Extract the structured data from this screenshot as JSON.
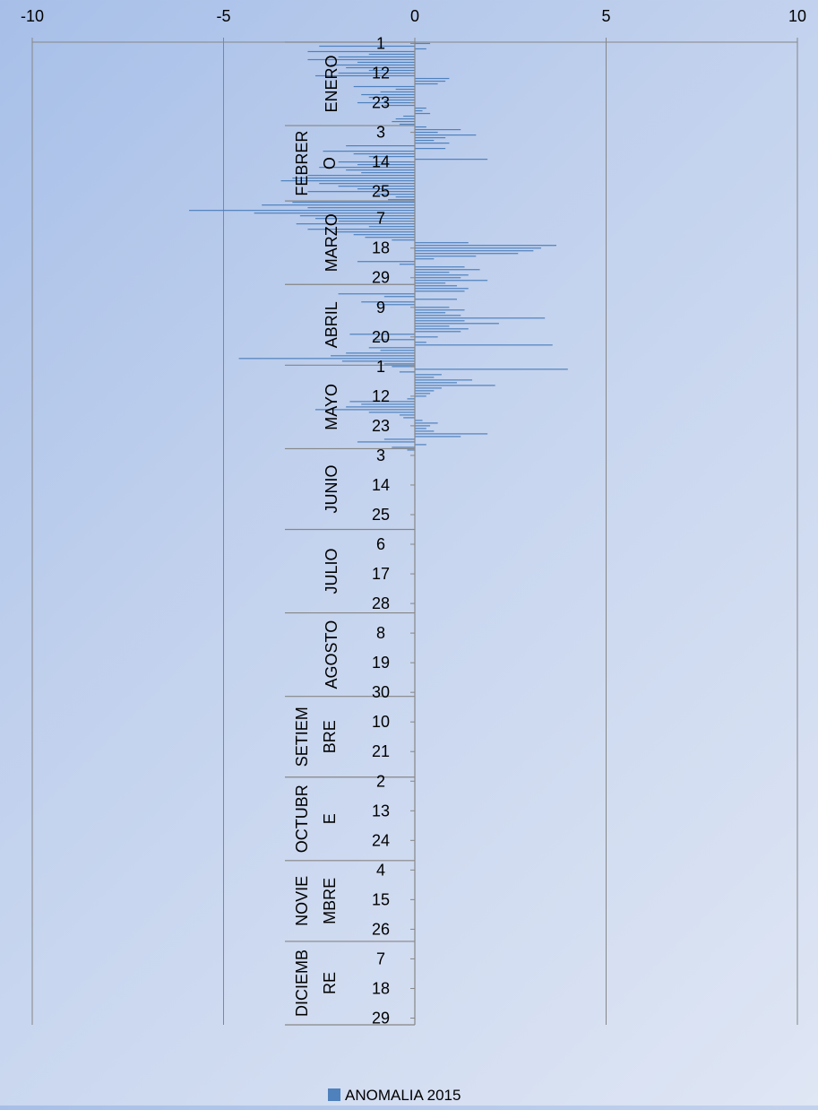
{
  "chart_data": {
    "type": "bar",
    "orientation": "horizontal",
    "title": "",
    "xlim": [
      -10,
      10
    ],
    "x_ticks": [
      "-10",
      "-5",
      "0",
      "5",
      "10"
    ],
    "grid": true,
    "legend": {
      "position": "bottom",
      "label": "ANOMALIA 2015"
    },
    "colors": {
      "bar": "#4f81bd",
      "axis": "#868686"
    },
    "months": [
      {
        "name": "ENERO",
        "lines": [
          "ENERO"
        ],
        "days": 31,
        "day_ticks": [
          "1",
          "12",
          "23"
        ]
      },
      {
        "name": "FEBRERO",
        "lines": [
          "FEBRER",
          "O"
        ],
        "days": 28,
        "day_ticks": [
          "3",
          "14",
          "25"
        ]
      },
      {
        "name": "MARZO",
        "lines": [
          "MARZO"
        ],
        "days": 31,
        "day_ticks": [
          "7",
          "18",
          "29"
        ]
      },
      {
        "name": "ABRIL",
        "lines": [
          "ABRIL"
        ],
        "days": 30,
        "day_ticks": [
          "9",
          "20"
        ]
      },
      {
        "name": "MAYO",
        "lines": [
          "MAYO"
        ],
        "days": 31,
        "day_ticks": [
          "1",
          "12",
          "23"
        ]
      },
      {
        "name": "JUNIO",
        "lines": [
          "JUNIO"
        ],
        "days": 30,
        "day_ticks": [
          "3",
          "14",
          "25"
        ]
      },
      {
        "name": "JULIO",
        "lines": [
          "JULIO"
        ],
        "days": 31,
        "day_ticks": [
          "6",
          "17",
          "28"
        ]
      },
      {
        "name": "AGOSTO",
        "lines": [
          "AGOSTO"
        ],
        "days": 31,
        "day_ticks": [
          "8",
          "19",
          "30"
        ]
      },
      {
        "name": "SETIEMBRE",
        "lines": [
          "SETIEM",
          "BRE"
        ],
        "days": 30,
        "day_ticks": [
          "10",
          "21"
        ]
      },
      {
        "name": "OCTUBRE",
        "lines": [
          "OCTUBR",
          "E"
        ],
        "days": 31,
        "day_ticks": [
          "2",
          "13",
          "24"
        ]
      },
      {
        "name": "NOVIEMBRE",
        "lines": [
          "NOVIE",
          "MBRE"
        ],
        "days": 30,
        "day_ticks": [
          "4",
          "15",
          "26"
        ]
      },
      {
        "name": "DICIEMBRE",
        "lines": [
          "DICIEMB",
          "RE"
        ],
        "days": 31,
        "day_ticks": [
          "7",
          "18",
          "29"
        ]
      }
    ],
    "series": [
      {
        "name": "ANOMALIA 2015",
        "values": [
          0.4,
          -2.5,
          0.3,
          -2.8,
          -1.2,
          -2.0,
          -2.8,
          -1.5,
          -2.2,
          -1.8,
          -1.2,
          -2.0,
          -2.6,
          0.9,
          0.8,
          0.6,
          -1.6,
          -0.5,
          -0.9,
          -1.4,
          -1.2,
          -0.8,
          -1.5,
          -0.8,
          0.3,
          0.2,
          0.4,
          -0.3,
          -0.5,
          -0.6,
          -0.4,
          0.3,
          1.2,
          0.6,
          1.6,
          0.8,
          0.5,
          0.9,
          -1.8,
          0.8,
          -2.4,
          -1.6,
          -1.2,
          1.9,
          -2.0,
          -1.5,
          -2.5,
          -1.8,
          -1.4,
          -2.8,
          -3.2,
          -3.5,
          -2.5,
          -2.0,
          -1.5,
          -2.8,
          -1.0,
          -0.5,
          -0.7,
          -3.2,
          -4.0,
          -2.8,
          -5.9,
          -4.2,
          -3.0,
          -2.6,
          -2.0,
          -3.1,
          -1.2,
          -2.8,
          -2.1,
          -1.6,
          -1.3,
          -0.6,
          1.4,
          3.7,
          3.3,
          3.1,
          2.7,
          1.6,
          0.5,
          -1.5,
          -0.4,
          1.3,
          1.7,
          0.9,
          1.4,
          1.2,
          1.9,
          0.8,
          1.1,
          1.4,
          1.3,
          -2.0,
          -0.8,
          1.1,
          -1.4,
          -1.0,
          0.9,
          1.3,
          0.8,
          1.2,
          3.4,
          1.3,
          2.2,
          0.9,
          1.4,
          1.2,
          -1.7,
          0.6,
          -1.1,
          0.3,
          3.6,
          -1.2,
          -0.9,
          -1.8,
          -2.2,
          -4.6,
          -1.9,
          -0.8,
          -0.6,
          4.0,
          -0.4,
          0.7,
          0.5,
          1.5,
          1.1,
          2.1,
          0.7,
          0.5,
          0.4,
          0.3,
          -0.2,
          -1.7,
          -1.4,
          -1.8,
          -2.6,
          -1.2,
          -0.4,
          -0.3,
          0.2,
          0.6,
          0.4,
          0.3,
          0.5,
          1.9,
          1.2,
          -0.8,
          -1.5,
          0.3,
          -0.6,
          -0.2,
          0,
          0,
          0,
          0,
          0,
          0,
          0,
          0,
          0,
          0,
          0,
          0,
          0,
          0,
          0,
          0,
          0,
          0,
          0,
          0,
          0,
          0,
          0,
          0,
          0,
          0,
          0,
          0,
          0,
          0,
          0,
          0,
          0,
          0,
          0,
          0,
          0,
          0,
          0,
          0,
          0,
          0,
          0,
          0,
          0,
          0,
          0,
          0,
          0,
          0,
          0,
          0,
          0,
          0,
          0,
          0,
          0,
          0,
          0,
          0,
          0,
          0,
          0,
          0,
          0,
          0,
          0,
          0,
          0,
          0,
          0,
          0,
          0,
          0,
          0,
          0,
          0,
          0,
          0,
          0,
          0,
          0,
          0,
          0,
          0,
          0,
          0,
          0,
          0,
          0,
          0,
          0,
          0,
          0,
          0,
          0,
          0,
          0,
          0,
          0,
          0,
          0,
          0,
          0,
          0,
          0,
          0,
          0,
          0,
          0,
          0,
          0,
          0,
          0,
          0,
          0,
          0,
          0,
          0,
          0,
          0,
          0,
          0,
          0,
          0,
          0,
          0,
          0,
          0,
          0,
          0,
          0,
          0,
          0,
          0,
          0,
          0,
          0,
          0,
          0,
          0,
          0,
          0,
          0,
          0,
          0,
          0,
          0,
          0,
          0,
          0,
          0,
          0,
          0,
          0,
          0,
          0,
          0,
          0,
          0,
          0,
          0,
          0,
          0,
          0,
          0,
          0,
          0,
          0,
          0,
          0,
          0,
          0,
          0,
          0,
          0,
          0,
          0,
          0,
          0,
          0,
          0,
          0,
          0,
          0,
          0,
          0,
          0,
          0,
          0,
          0,
          0,
          0,
          0,
          0,
          0,
          0,
          0,
          0,
          0,
          0,
          0,
          0,
          0,
          0,
          0,
          0,
          0,
          0,
          0,
          0,
          0,
          0,
          0
        ]
      }
    ]
  }
}
